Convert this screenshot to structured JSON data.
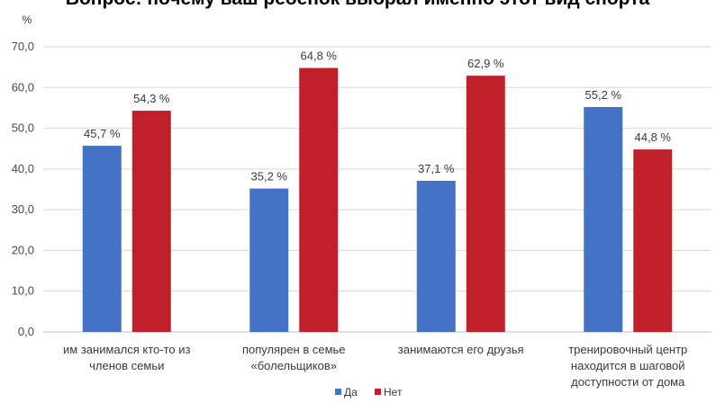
{
  "chart_data": {
    "type": "bar",
    "title": "Вопрос: почему ваш ребенок выбрал именно этот вид спорта",
    "ylabel": "%",
    "ylim": [
      0,
      70
    ],
    "yticks": [
      0,
      10,
      20,
      30,
      40,
      50,
      60,
      70
    ],
    "ytick_labels": [
      "0,0",
      "10,0",
      "20,0",
      "30,0",
      "40,0",
      "50,0",
      "60,0",
      "70,0"
    ],
    "grid": true,
    "legend_position": "bottom",
    "categories": [
      [
        "им занимался кто-то из",
        "членов семьи"
      ],
      [
        "популярен в семье",
        "«болельщиков»"
      ],
      [
        "занимаются его друзья"
      ],
      [
        "тренировочный центр",
        "находится в шаговой",
        "доступности от дома"
      ]
    ],
    "series": [
      {
        "name": "Да",
        "color": "#4472c4",
        "values": [
          45.7,
          35.2,
          37.1,
          55.2
        ],
        "labels": [
          "45,7 %",
          "35,2 %",
          "37,1 %",
          "55,2 %"
        ]
      },
      {
        "name": "Нет",
        "color": "#c0202a",
        "values": [
          54.3,
          64.8,
          62.9,
          44.8
        ],
        "labels": [
          "54,3 %",
          "64,8 %",
          "62,9 %",
          "44,8 %"
        ]
      }
    ]
  }
}
